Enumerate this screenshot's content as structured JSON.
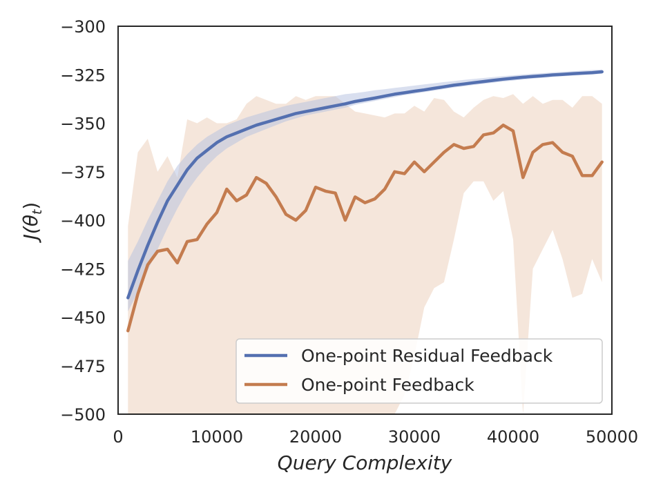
{
  "chart_data": {
    "type": "line",
    "title": "",
    "xlabel": "Query Complexity",
    "ylabel": "J(θ_t)",
    "ylabel_parts": {
      "main": "J(θ",
      "sub": "t",
      "close": ")"
    },
    "xlim": [
      0,
      50000
    ],
    "ylim": [
      -500,
      -300
    ],
    "xticks": [
      0,
      10000,
      20000,
      30000,
      40000,
      50000
    ],
    "yticks": [
      -500,
      -475,
      -450,
      -425,
      -400,
      -375,
      -350,
      -325,
      -300
    ],
    "grid": false,
    "legend_position": "lower-right",
    "x": [
      1000,
      2000,
      3000,
      4000,
      5000,
      6000,
      7000,
      8000,
      9000,
      10000,
      11000,
      12000,
      13000,
      14000,
      15000,
      16000,
      17000,
      18000,
      19000,
      20000,
      21000,
      22000,
      23000,
      24000,
      25000,
      26000,
      27000,
      28000,
      29000,
      30000,
      31000,
      32000,
      33000,
      34000,
      35000,
      36000,
      37000,
      38000,
      39000,
      40000,
      41000,
      42000,
      43000,
      44000,
      45000,
      46000,
      47000,
      48000,
      49000
    ],
    "series": [
      {
        "name": "One-point Residual Feedback",
        "color": "#5470b0",
        "band_color": "#b4c0e0",
        "values": [
          -440,
          -426,
          -413,
          -401,
          -390,
          -382,
          -374,
          -368,
          -364,
          -360,
          -357,
          -355,
          -353,
          -351,
          -349.5,
          -348,
          -346.5,
          -345,
          -344,
          -343,
          -342,
          -341,
          -340,
          -338.8,
          -337.9,
          -337,
          -336,
          -335,
          -334.3,
          -333.5,
          -332.8,
          -332,
          -331.2,
          -330.4,
          -329.8,
          -329.1,
          -328.5,
          -327.9,
          -327.3,
          -326.8,
          -326.3,
          -325.9,
          -325.5,
          -325.1,
          -324.8,
          -324.5,
          -324.2,
          -323.9,
          -323.5
        ],
        "lower": [
          -447,
          -437,
          -426,
          -415,
          -404,
          -394,
          -385,
          -378,
          -372,
          -367,
          -363,
          -360,
          -357,
          -355,
          -353,
          -351,
          -349,
          -347.5,
          -346,
          -345,
          -344,
          -343,
          -342,
          -340.5,
          -339.5,
          -338.5,
          -337.5,
          -336.5,
          -335.5,
          -334.8,
          -334,
          -333.2,
          -332.4,
          -331.6,
          -331,
          -330.3,
          -329.7,
          -329.1,
          -328.5,
          -328,
          -327.5,
          -327,
          -326.6,
          -326.2,
          -325.8,
          -325.5,
          -325.2,
          -324.9,
          -324.5
        ],
        "upper": [
          -421,
          -411,
          -400,
          -390,
          -380,
          -372,
          -366,
          -361,
          -357,
          -354,
          -351,
          -349,
          -347,
          -345.5,
          -344,
          -342.5,
          -341,
          -340,
          -339,
          -338,
          -337,
          -336,
          -335,
          -334.5,
          -333.8,
          -333,
          -332.5,
          -331.8,
          -331.2,
          -330.6,
          -330,
          -329.4,
          -328.8,
          -328.3,
          -327.7,
          -327.2,
          -326.7,
          -326.2,
          -325.7,
          -325.3,
          -324.9,
          -324.5,
          -324.2,
          -323.8,
          -323.5,
          -323.2,
          -322.9,
          -322.6,
          -322.3
        ]
      },
      {
        "name": "One-point Feedback",
        "color": "#c47c4f",
        "band_color": "#f0d8c8",
        "values": [
          -457,
          -438,
          -423,
          -416,
          -415,
          -422,
          -411,
          -410,
          -402,
          -396,
          -384,
          -390,
          -387,
          -378,
          -381,
          -388,
          -397,
          -400,
          -395,
          -383,
          -385,
          -386,
          -400,
          -388,
          -391,
          -389,
          -384,
          -375,
          -376,
          -370,
          -375,
          -370,
          -365,
          -361,
          -363,
          -362,
          -356,
          -355,
          -351,
          -354,
          -378,
          -365,
          -361,
          -360,
          -365,
          -367,
          -377,
          -377,
          -370
        ],
        "lower": [
          -500,
          -500,
          -500,
          -500,
          -500,
          -500,
          -500,
          -500,
          -500,
          -500,
          -500,
          -500,
          -500,
          -500,
          -500,
          -500,
          -500,
          -500,
          -500,
          -500,
          -500,
          -500,
          -500,
          -500,
          -500,
          -500,
          -500,
          -500,
          -490,
          -470,
          -445,
          -435,
          -432,
          -410,
          -386,
          -380,
          -380,
          -390,
          -385,
          -410,
          -500,
          -425,
          -415,
          -405,
          -420,
          -440,
          -438,
          -420,
          -432
        ],
        "upper": [
          -403,
          -365,
          -358,
          -375,
          -367,
          -378,
          -348,
          -350,
          -347,
          -350,
          -350,
          -348,
          -340,
          -336,
          -338,
          -340,
          -340,
          -336,
          -338,
          -336,
          -336,
          -336,
          -340,
          -344,
          -345,
          -346,
          -347,
          -345,
          -345,
          -341,
          -344,
          -337,
          -338,
          -344,
          -347,
          -342,
          -338,
          -336,
          -337,
          -335,
          -340,
          -336,
          -340,
          -338,
          -338,
          -342,
          -336,
          -336,
          -340
        ]
      }
    ]
  }
}
